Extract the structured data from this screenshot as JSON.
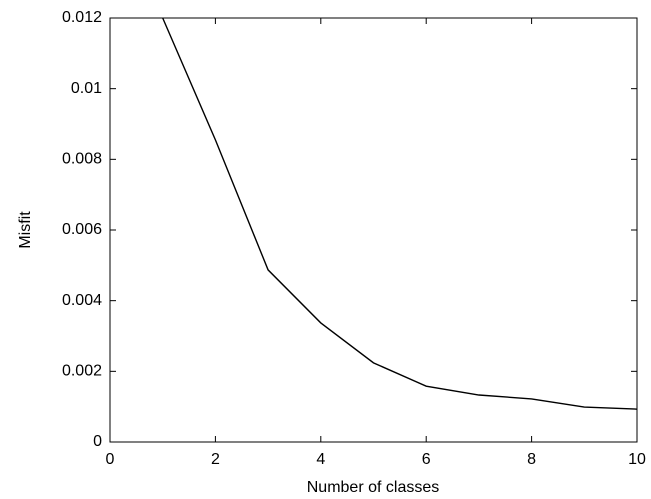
{
  "chart_data": {
    "type": "line",
    "x_label": "Number of classes",
    "y_label": "Misfit",
    "x": [
      1,
      2,
      3,
      4,
      5,
      6,
      7,
      8,
      9,
      10
    ],
    "series": [
      {
        "name": "Misfit",
        "color": "#000000",
        "values": [
          0.012,
          0.00855,
          0.00487,
          0.00337,
          0.00224,
          0.00158,
          0.00133,
          0.00122,
          0.00099,
          0.00093
        ]
      }
    ],
    "xlim": [
      0,
      10
    ],
    "xticks": [
      0,
      2,
      4,
      6,
      8,
      10
    ],
    "ylim": [
      0,
      0.012
    ],
    "yticks": [
      0,
      0.002,
      0.004,
      0.006,
      0.008,
      0.01,
      0.012
    ],
    "grid": false
  }
}
